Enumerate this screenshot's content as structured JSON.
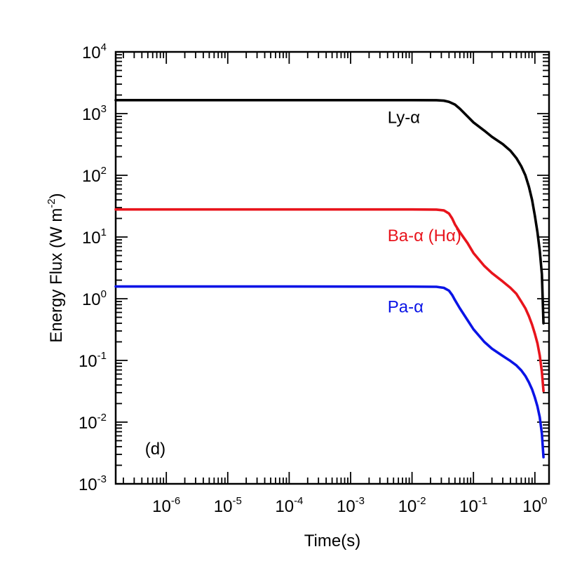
{
  "chart_data": {
    "type": "line",
    "title": "",
    "xlabel": "Time(s)",
    "ylabel_main": "Energy Flux (W m",
    "ylabel_sup": "-2",
    "ylabel_close": ")",
    "xscale": "log",
    "yscale": "log",
    "xlim": [
      1.5e-07,
      1.7
    ],
    "ylim": [
      0.001,
      10000
    ],
    "grid": false,
    "x_ticks": [
      {
        "value": 1e-06,
        "base": "10",
        "exp": "-6"
      },
      {
        "value": 1e-05,
        "base": "10",
        "exp": "-5"
      },
      {
        "value": 0.0001,
        "base": "10",
        "exp": "-4"
      },
      {
        "value": 0.001,
        "base": "10",
        "exp": "-3"
      },
      {
        "value": 0.01,
        "base": "10",
        "exp": "-2"
      },
      {
        "value": 0.1,
        "base": "10",
        "exp": "-1"
      },
      {
        "value": 1,
        "base": "10",
        "exp": "0"
      }
    ],
    "y_ticks": [
      {
        "value": 0.001,
        "base": "10",
        "exp": "-3"
      },
      {
        "value": 0.01,
        "base": "10",
        "exp": "-2"
      },
      {
        "value": 0.1,
        "base": "10",
        "exp": "-1"
      },
      {
        "value": 1,
        "base": "10",
        "exp": "0"
      },
      {
        "value": 10,
        "base": "10",
        "exp": "1"
      },
      {
        "value": 100,
        "base": "10",
        "exp": "2"
      },
      {
        "value": 1000,
        "base": "10",
        "exp": "3"
      },
      {
        "value": 10000,
        "base": "10",
        "exp": "4"
      }
    ],
    "series": [
      {
        "name": "Ly-α",
        "color": "#000000",
        "label_x": 0.004,
        "label_y": 700,
        "points": [
          [
            1.5e-07,
            1650
          ],
          [
            0.0001,
            1650
          ],
          [
            0.01,
            1650
          ],
          [
            0.025,
            1645
          ],
          [
            0.033,
            1620
          ],
          [
            0.04,
            1550
          ],
          [
            0.05,
            1400
          ],
          [
            0.06,
            1200
          ],
          [
            0.08,
            900
          ],
          [
            0.1,
            720
          ],
          [
            0.15,
            530
          ],
          [
            0.2,
            420
          ],
          [
            0.3,
            320
          ],
          [
            0.4,
            250
          ],
          [
            0.5,
            190
          ],
          [
            0.6,
            140
          ],
          [
            0.7,
            100
          ],
          [
            0.8,
            65
          ],
          [
            0.9,
            40
          ],
          [
            1.0,
            22
          ],
          [
            1.1,
            12
          ],
          [
            1.2,
            6
          ],
          [
            1.3,
            2.5
          ],
          [
            1.38,
            0.4
          ]
        ]
      },
      {
        "name": "Ba-α (Hα)",
        "color": "#e8141c",
        "label_x": 0.004,
        "label_y": 8.5,
        "points": [
          [
            1.5e-07,
            28
          ],
          [
            0.0001,
            28
          ],
          [
            0.01,
            28
          ],
          [
            0.025,
            27.8
          ],
          [
            0.033,
            27
          ],
          [
            0.04,
            24
          ],
          [
            0.045,
            20
          ],
          [
            0.05,
            16
          ],
          [
            0.06,
            12
          ],
          [
            0.08,
            8
          ],
          [
            0.1,
            5.5
          ],
          [
            0.15,
            3.4
          ],
          [
            0.2,
            2.6
          ],
          [
            0.3,
            1.9
          ],
          [
            0.4,
            1.5
          ],
          [
            0.5,
            1.2
          ],
          [
            0.6,
            0.9
          ],
          [
            0.7,
            0.7
          ],
          [
            0.8,
            0.52
          ],
          [
            0.9,
            0.38
          ],
          [
            1.0,
            0.27
          ],
          [
            1.1,
            0.19
          ],
          [
            1.2,
            0.12
          ],
          [
            1.3,
            0.065
          ],
          [
            1.38,
            0.032
          ]
        ]
      },
      {
        "name": "Pa-α",
        "color": "#0a14e6",
        "label_x": 0.004,
        "label_y": 0.6,
        "points": [
          [
            1.5e-07,
            1.58
          ],
          [
            0.0001,
            1.58
          ],
          [
            0.01,
            1.57
          ],
          [
            0.025,
            1.56
          ],
          [
            0.033,
            1.5
          ],
          [
            0.04,
            1.35
          ],
          [
            0.045,
            1.15
          ],
          [
            0.05,
            0.95
          ],
          [
            0.06,
            0.7
          ],
          [
            0.08,
            0.45
          ],
          [
            0.1,
            0.32
          ],
          [
            0.15,
            0.2
          ],
          [
            0.2,
            0.155
          ],
          [
            0.3,
            0.118
          ],
          [
            0.4,
            0.098
          ],
          [
            0.5,
            0.083
          ],
          [
            0.6,
            0.069
          ],
          [
            0.7,
            0.056
          ],
          [
            0.8,
            0.044
          ],
          [
            0.9,
            0.034
          ],
          [
            1.0,
            0.025
          ],
          [
            1.1,
            0.018
          ],
          [
            1.2,
            0.012
          ],
          [
            1.3,
            0.0065
          ],
          [
            1.38,
            0.0027
          ]
        ]
      }
    ],
    "annotation": "(d)",
    "annotation_x": 4.5e-07,
    "annotation_y": 0.003
  }
}
